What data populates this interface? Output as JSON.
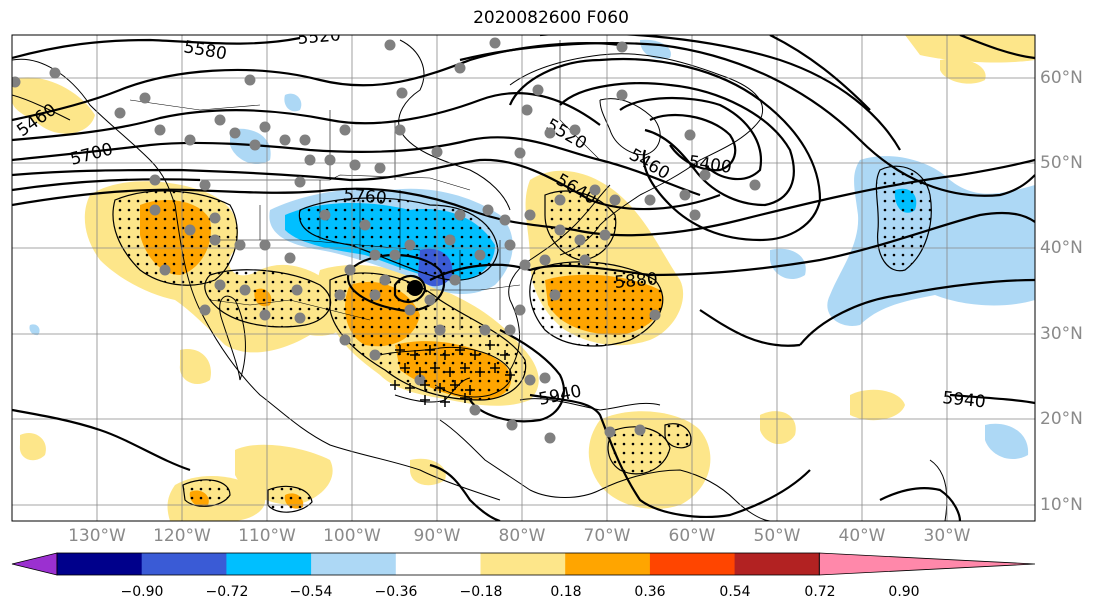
{
  "title": "2020082600 F060",
  "lat_labels": [
    "60°N",
    "50°N",
    "40°N",
    "30°N",
    "20°N",
    "10°N"
  ],
  "lon_labels": [
    "130°W",
    "120°W",
    "110°W",
    "100°W",
    "90°W",
    "80°W",
    "70°W",
    "60°W",
    "50°W",
    "40°W",
    "30°W"
  ],
  "contour_labels": [
    "5580",
    "5520",
    "5460",
    "5700",
    "5520",
    "5460",
    "5400",
    "5640",
    "5760",
    "5880",
    "5940",
    "5940"
  ],
  "colorbar": {
    "ticks": [
      "−0.90",
      "−0.72",
      "−0.54",
      "−0.36",
      "−0.18",
      "0.18",
      "0.36",
      "0.54",
      "0.72",
      "0.90"
    ],
    "colors": [
      "#9b30d0",
      "#00008b",
      "#3a5bd6",
      "#00bfff",
      "#add8f5",
      "#ffffff",
      "#fde68a",
      "#ffa500",
      "#ff4500",
      "#b22222",
      "#ff88aa"
    ]
  }
}
